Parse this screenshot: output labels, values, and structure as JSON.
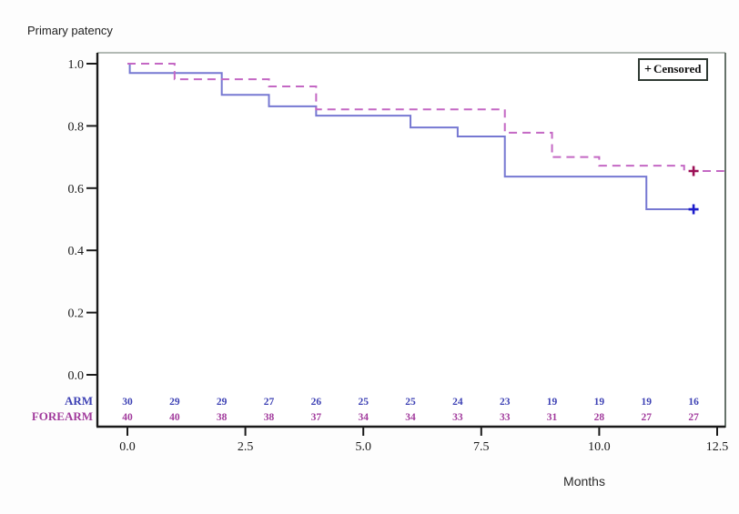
{
  "page": {
    "background": "#fdfdfd"
  },
  "chart_data": {
    "type": "line",
    "subtype": "kaplan-meier-step-curve",
    "title": "Primary patency",
    "xlabel": "Months",
    "ylabel": "Primary patency",
    "xlim": [
      0,
      12.7
    ],
    "ylim": [
      0,
      1.0
    ],
    "grid": false,
    "x_ticks": [
      "0.0",
      "2.5",
      "5.0",
      "7.5",
      "10.0",
      "12.5"
    ],
    "x_tick_values": [
      0,
      2.5,
      5,
      7.5,
      10,
      12.5
    ],
    "y_ticks": [
      "0.0",
      "0.2",
      "0.4",
      "0.6",
      "0.8",
      "1.0"
    ],
    "y_tick_values": [
      0,
      0.2,
      0.4,
      0.6,
      0.8,
      1.0
    ],
    "legend": {
      "symbol": "+",
      "label": "Censored",
      "position": "top-right-inside"
    },
    "at_risk_months": [
      0,
      1,
      2,
      3,
      4,
      5,
      6,
      7,
      8,
      9,
      10,
      11,
      12
    ],
    "series": [
      {
        "name": "ARM",
        "style": "solid",
        "line_color": "#7678d2",
        "label_color": "#3d41b4",
        "censor_color": "#1c1ccb",
        "steps": [
          [
            0,
            1.0
          ],
          [
            0.05,
            0.97
          ],
          [
            2,
            0.9
          ],
          [
            3,
            0.863
          ],
          [
            4,
            0.833
          ],
          [
            6,
            0.795
          ],
          [
            7,
            0.766
          ],
          [
            8,
            0.637
          ],
          [
            11,
            0.532
          ]
        ],
        "end_month": 12.1,
        "censored": [
          [
            12,
            0.532
          ]
        ],
        "at_risk": [
          30,
          29,
          29,
          27,
          26,
          25,
          25,
          24,
          23,
          19,
          19,
          19,
          16
        ]
      },
      {
        "name": "FOREARM",
        "style": "dashed",
        "line_color": "#c468c4",
        "label_color": "#a13a9c",
        "censor_color": "#9c1056",
        "steps": [
          [
            0,
            1.0
          ],
          [
            1,
            0.95
          ],
          [
            3,
            0.927
          ],
          [
            4,
            0.853
          ],
          [
            8,
            0.778
          ],
          [
            9,
            0.7
          ],
          [
            10,
            0.672
          ],
          [
            11.8,
            0.655
          ]
        ],
        "end_month": 12.65,
        "censored": [
          [
            12,
            0.655
          ]
        ],
        "at_risk": [
          40,
          40,
          38,
          38,
          37,
          34,
          34,
          33,
          33,
          31,
          28,
          27,
          27
        ]
      }
    ],
    "colors": {
      "axis": "#1a1a1a",
      "top_border": "#9aa49c",
      "right_border": "#67736b",
      "tick_label": "#1a1a1a",
      "plot_background": "#ffffff"
    }
  }
}
